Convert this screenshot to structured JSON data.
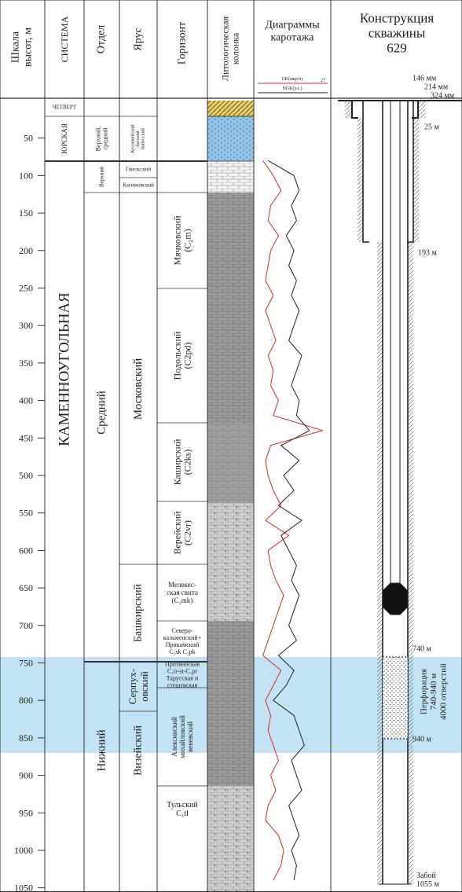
{
  "header": {
    "scale": [
      "Шкала",
      "высот, м"
    ],
    "system": "СИСТЕМА",
    "series": "Отдел",
    "stage": "Ярус",
    "horizon": "Горизонт",
    "lithology": [
      "Литологическая",
      "колонка"
    ],
    "logs": [
      "Диаграммы",
      "каротажа"
    ],
    "construction": [
      "Конструкция",
      "скважины",
      "629"
    ]
  },
  "scale": {
    "ticks": [
      50,
      100,
      150,
      200,
      250,
      300,
      350,
      400,
      450,
      500,
      550,
      600,
      650,
      700,
      750,
      800,
      850,
      900,
      950,
      1000,
      1050
    ]
  },
  "systems": [
    [
      "ЧЕТВЕРТ"
    ],
    [
      "ЮРСКАЯ"
    ],
    [
      "КАМЕННОУГОЛЬНАЯ"
    ]
  ],
  "series": [
    [
      "Верхний,",
      "средний"
    ],
    [
      "Верхний"
    ],
    [
      "Средний"
    ],
    [
      "Нижний"
    ]
  ],
  "stages": [
    [
      "Келловейский",
      "батский",
      "байосский"
    ],
    [
      "Гжельский"
    ],
    [
      "Касимовский"
    ],
    [
      "Московский"
    ],
    [
      "Башкирский"
    ],
    [
      "Серпух-",
      "овский"
    ],
    [
      "Визейский"
    ]
  ],
  "horizons": [
    [
      "Мячковский",
      "(C₂m)"
    ],
    [
      "Подольский",
      "(C2pd)"
    ],
    [
      "Каширский",
      "(C2ks)"
    ],
    [
      "Верейский",
      "(C2vr)"
    ],
    [
      "Мелекес-",
      "ская свита",
      "(C₂mk)"
    ],
    [
      "Северо-",
      "кальменский+",
      "Прикамский",
      "C₂sk  C₂pk"
    ],
    [
      "Протвинская",
      "C₁tr-st-C₁pr",
      "Тарусская и",
      "стешевская"
    ],
    [
      "Алексинский",
      "михайловский",
      "веневский"
    ],
    [
      "Тульский",
      "C₁tl"
    ]
  ],
  "logs": {
    "scale_max": 27,
    "depths": [
      80,
      100,
      120,
      140,
      160,
      180,
      200,
      220,
      240,
      260,
      280,
      300,
      320,
      340,
      360,
      380,
      400,
      420,
      440,
      460,
      480,
      500,
      520,
      540,
      560,
      580,
      600,
      620,
      640,
      660,
      680,
      700,
      720,
      740,
      760,
      780,
      800,
      820,
      840,
      860,
      880,
      900,
      920,
      940,
      960,
      980,
      1000,
      1020,
      1040
    ],
    "curves": [
      {
        "name": "GK(мкр/ч)",
        "color": "#e02a1f",
        "values": [
          2,
          6,
          9,
          5,
          4,
          8,
          5,
          4,
          3,
          6,
          3,
          5,
          7,
          4,
          6,
          5,
          8,
          6,
          25,
          5,
          3,
          4,
          6,
          9,
          3,
          12,
          4,
          5,
          7,
          10,
          8,
          6,
          4,
          2,
          9,
          6,
          3,
          5,
          4,
          6,
          8,
          5,
          7,
          4,
          3,
          8,
          10,
          9,
          6
        ]
      },
      {
        "name": "NGK(у.е.)",
        "color": "#222222",
        "values": [
          4,
          14,
          16,
          13,
          15,
          11,
          14,
          12,
          15,
          13,
          16,
          14,
          12,
          17,
          15,
          13,
          16,
          15,
          20,
          9,
          16,
          10,
          14,
          8,
          17,
          9,
          12,
          15,
          13,
          16,
          14,
          12,
          15,
          8,
          14,
          11,
          6,
          14,
          16,
          18,
          13,
          15,
          17,
          12,
          14,
          16,
          13,
          15,
          14
        ]
      }
    ]
  },
  "construction": {
    "diameters": [
      "146 мм",
      "214 мм",
      "324 мм"
    ],
    "depth_labels": [
      "25 м",
      "193 м",
      "740 м",
      "940 м"
    ],
    "perforation": [
      "Перфорация",
      "740-940  м",
      "4000 отверстий"
    ],
    "bottom": [
      "Забой",
      "1055 м"
    ]
  }
}
